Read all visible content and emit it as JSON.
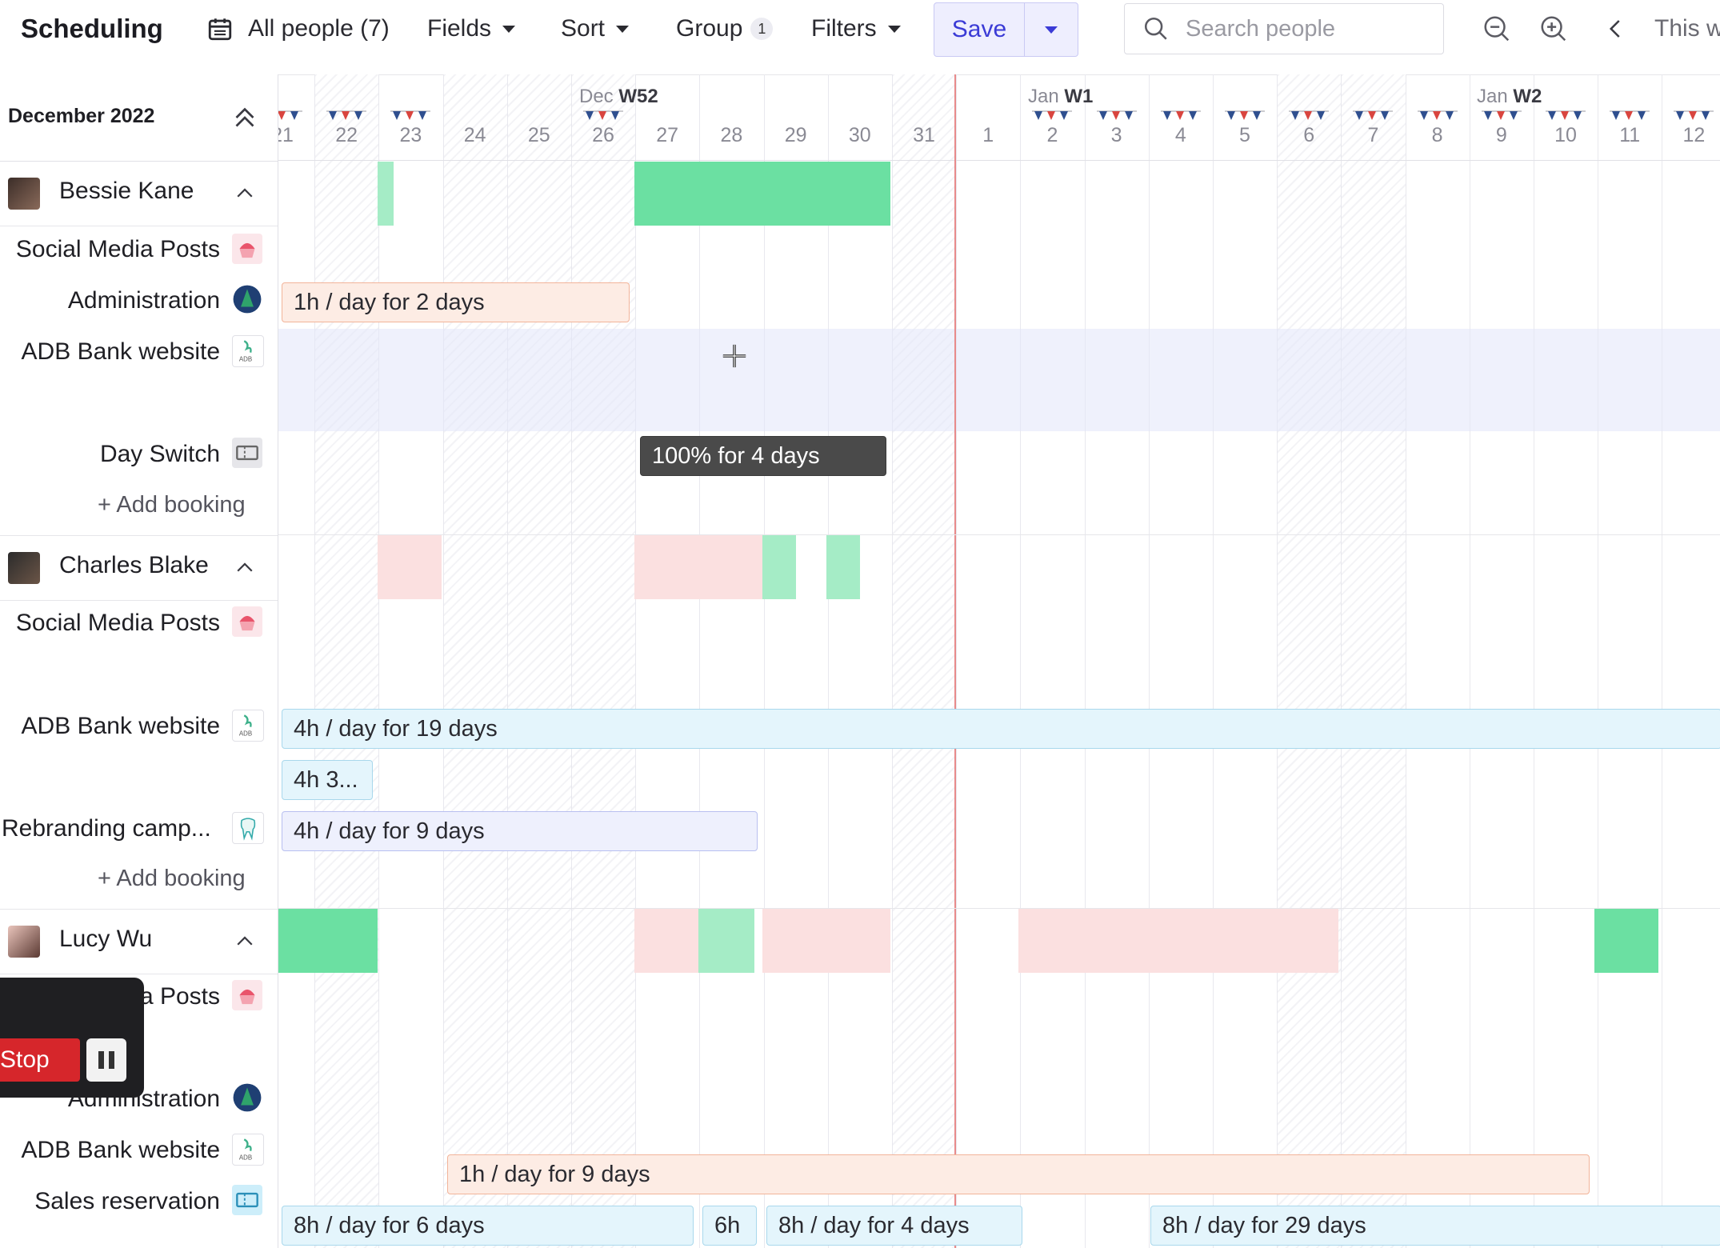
{
  "toolbar": {
    "title": "Scheduling",
    "people_filter": "All people (7)",
    "fields": "Fields",
    "sort": "Sort",
    "group": "Group",
    "group_count": "1",
    "filters": "Filters",
    "save": "Save",
    "search_placeholder": "Search people",
    "this_week": "This w"
  },
  "calendar": {
    "month_label": "December 2022",
    "weeks": [
      {
        "month": "Dec",
        "week": "W52"
      },
      {
        "month": "Jan",
        "week": "W1"
      },
      {
        "month": "Jan",
        "week": "W2"
      }
    ],
    "days": [
      "21",
      "22",
      "23",
      "24",
      "25",
      "26",
      "27",
      "28",
      "29",
      "30",
      "31",
      "1",
      "2",
      "3",
      "4",
      "5",
      "6",
      "7",
      "8",
      "9",
      "10",
      "11",
      "12"
    ]
  },
  "people": [
    {
      "name": "Bessie Kane",
      "projects": [
        "Social Media Posts",
        "Administration",
        "ADB Bank website",
        "Day Switch"
      ],
      "add_booking": "Add booking",
      "bookings": [
        "1h / day for 2 days",
        "100% for 4 days"
      ]
    },
    {
      "name": "Charles Blake",
      "projects": [
        "Social Media Posts",
        "ADB Bank website",
        "Rebranding camp..."
      ],
      "add_booking": "Add booking",
      "bookings": [
        "4h / day for 19 days",
        "4h 3...",
        "4h / day for 9 days"
      ]
    },
    {
      "name": "Lucy Wu",
      "projects": [
        "a Posts",
        "Administration",
        "ADB Bank website",
        "Sales reservation"
      ],
      "bookings": [
        "1h / day for 9 days",
        "8h / day for 6 days",
        "6h",
        "8h / day for 4 days",
        "8h / day for 29 days"
      ]
    }
  ],
  "recorder": {
    "stop": "Stop"
  },
  "icons": [
    "calendar-icon",
    "search-icon",
    "zoom-out-icon",
    "zoom-in-icon",
    "chevron-left-icon",
    "double-chevron-up-icon",
    "chevron-up-icon",
    "cupcake-icon",
    "tree-icon",
    "adb-logo-icon",
    "ticket-icon",
    "tooth-icon",
    "plus-icon",
    "pause-icon",
    "move-cursor-icon",
    "bunting-flag-icon"
  ],
  "colors": {
    "accent": "#3b3bd6",
    "today": "#e88b8b",
    "capacity_green": "#6be0a2",
    "overbooked_pink": "#fbe0e0"
  }
}
